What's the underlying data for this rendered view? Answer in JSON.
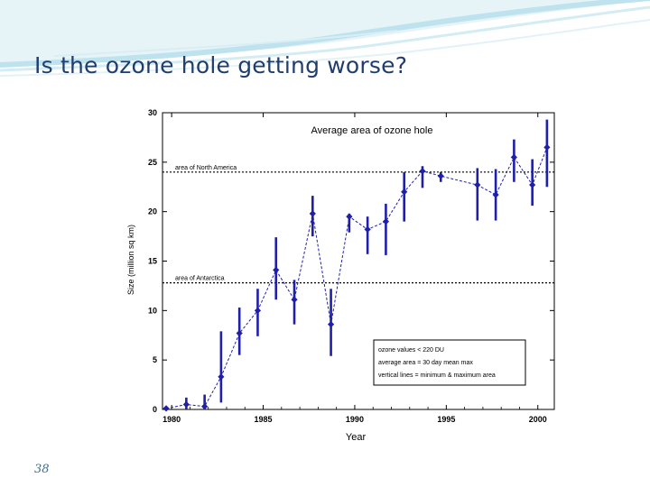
{
  "slide": {
    "title": "Is the ozone hole getting worse?",
    "number": "38"
  },
  "colors": {
    "title": "#1f3e6e",
    "series": "#1f1fa8",
    "header_wave": "#bfe3ee"
  },
  "chart_data": {
    "type": "scatter",
    "title": "Average area of ozone hole",
    "xlabel": "Year",
    "ylabel": "Size (million sq km)",
    "xlim": [
      1979.5,
      2000.9
    ],
    "ylim": [
      0,
      30
    ],
    "x_ticks": [
      "1980",
      "1985",
      "1990",
      "1995",
      "2000"
    ],
    "y_ticks": [
      "0",
      "5",
      "10",
      "15",
      "20",
      "25",
      "30"
    ],
    "grid": false,
    "series": [
      {
        "connected": "dashed-line",
        "points": [
          {
            "x": 1979.7,
            "y": 0.1,
            "min": 0.0,
            "max": 0.3
          },
          {
            "x": 1980.8,
            "y": 0.5,
            "min": 0.0,
            "max": 1.2
          },
          {
            "x": 1981.8,
            "y": 0.3,
            "min": 0.0,
            "max": 1.5
          },
          {
            "x": 1982.7,
            "y": 3.3,
            "min": 0.7,
            "max": 7.9
          },
          {
            "x": 1983.7,
            "y": 7.7,
            "min": 5.5,
            "max": 10.3
          },
          {
            "x": 1984.7,
            "y": 10.0,
            "min": 7.4,
            "max": 12.2
          },
          {
            "x": 1985.7,
            "y": 14.1,
            "min": 11.1,
            "max": 17.4
          },
          {
            "x": 1986.7,
            "y": 11.1,
            "min": 8.6,
            "max": 13.1
          },
          {
            "x": 1987.7,
            "y": 19.8,
            "min": 17.5,
            "max": 21.6
          },
          {
            "x": 1988.7,
            "y": 8.6,
            "min": 5.4,
            "max": 12.2
          },
          {
            "x": 1989.7,
            "y": 19.5,
            "min": 17.9,
            "max": 19.8
          },
          {
            "x": 1990.7,
            "y": 18.2,
            "min": 15.7,
            "max": 19.5
          },
          {
            "x": 1991.7,
            "y": 19.0,
            "min": 15.6,
            "max": 20.8
          },
          {
            "x": 1992.7,
            "y": 22.0,
            "min": 19.0,
            "max": 24.0
          },
          {
            "x": 1993.7,
            "y": 24.1,
            "min": 22.4,
            "max": 24.6
          },
          {
            "x": 1994.7,
            "y": 23.6,
            "min": 23.0,
            "max": 24.0
          },
          {
            "x": 1996.7,
            "y": 22.7,
            "min": 19.1,
            "max": 24.4
          },
          {
            "x": 1997.7,
            "y": 21.7,
            "min": 19.1,
            "max": 24.3
          },
          {
            "x": 1998.7,
            "y": 25.5,
            "min": 23.0,
            "max": 27.3
          },
          {
            "x": 1999.7,
            "y": 22.7,
            "min": 20.6,
            "max": 25.3
          },
          {
            "x": 2000.5,
            "y": 26.5,
            "min": 22.5,
            "max": 29.3
          }
        ]
      }
    ],
    "reference_lines": [
      {
        "label": "area of North America",
        "y": 24.0
      },
      {
        "label": "area of Antarctica",
        "y": 12.8
      }
    ],
    "legend_position": "bottom-right",
    "legend_lines": [
      "ozone values < 220 DU",
      "average area = 30 day mean max",
      "vertical lines = minimum & maximum area"
    ]
  }
}
